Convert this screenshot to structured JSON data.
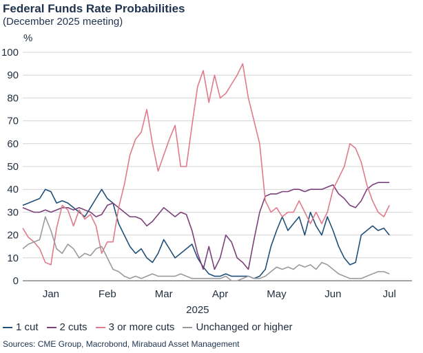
{
  "title": "Federal Funds Rate Probabilities",
  "subtitle": "(December 2025 meeting)",
  "source": "Sources: CME Group, Macrobond, Mirabaud Asset Management",
  "chart_data": {
    "type": "line",
    "ylabel": "%",
    "xlabel": "2025",
    "ylim": [
      0,
      100
    ],
    "yticks": [
      0,
      10,
      20,
      30,
      40,
      50,
      60,
      70,
      80,
      90,
      100
    ],
    "xlim": [
      0,
      6.9
    ],
    "month_ticks": [
      {
        "label": "Jan",
        "pos": 0.5
      },
      {
        "label": "Feb",
        "pos": 1.5
      },
      {
        "label": "Mar",
        "pos": 2.5
      },
      {
        "label": "Apr",
        "pos": 3.5
      },
      {
        "label": "May",
        "pos": 4.5
      },
      {
        "label": "Jun",
        "pos": 5.5
      },
      {
        "label": "Jul",
        "pos": 6.5
      }
    ],
    "x": [
      0.0,
      0.1,
      0.2,
      0.3,
      0.4,
      0.5,
      0.6,
      0.7,
      0.8,
      0.9,
      1.0,
      1.1,
      1.2,
      1.3,
      1.4,
      1.5,
      1.6,
      1.7,
      1.8,
      1.9,
      2.0,
      2.1,
      2.2,
      2.3,
      2.4,
      2.5,
      2.6,
      2.7,
      2.8,
      2.9,
      3.0,
      3.1,
      3.2,
      3.3,
      3.4,
      3.5,
      3.6,
      3.7,
      3.8,
      3.9,
      4.0,
      4.1,
      4.2,
      4.3,
      4.4,
      4.5,
      4.6,
      4.7,
      4.8,
      4.9,
      5.0,
      5.1,
      5.2,
      5.3,
      5.4,
      5.5,
      5.6,
      5.7,
      5.8,
      5.9,
      6.0,
      6.1,
      6.2,
      6.3,
      6.4,
      6.5
    ],
    "series": [
      {
        "name": "1 cut",
        "color": "#1f4e79",
        "values": [
          33,
          34,
          35,
          36,
          40,
          39,
          34,
          35,
          34,
          32,
          30,
          28,
          32,
          36,
          40,
          36,
          34,
          25,
          20,
          15,
          12,
          14,
          10,
          8,
          12,
          18,
          14,
          10,
          12,
          14,
          16,
          10,
          6,
          3,
          2,
          2,
          3,
          2,
          2,
          2,
          2,
          1,
          2,
          5,
          15,
          22,
          28,
          22,
          25,
          28,
          20,
          30,
          24,
          20,
          28,
          22,
          15,
          10,
          7,
          8,
          20,
          22,
          24,
          22,
          23,
          20
        ]
      },
      {
        "name": "2 cuts",
        "color": "#7b3f7a",
        "values": [
          32,
          31,
          30,
          30,
          31,
          30,
          31,
          32,
          32,
          31,
          32,
          31,
          30,
          28,
          29,
          33,
          34,
          32,
          30,
          28,
          28,
          27,
          24,
          26,
          29,
          32,
          30,
          28,
          30,
          29,
          22,
          12,
          5,
          15,
          5,
          10,
          20,
          17,
          10,
          8,
          5,
          18,
          30,
          37,
          38,
          38,
          39,
          39,
          40,
          40,
          39,
          40,
          40,
          40,
          41,
          42,
          38,
          36,
          33,
          32,
          35,
          40,
          42,
          43,
          43,
          43
        ]
      },
      {
        "name": "3 or more cuts",
        "color": "#e07a8a",
        "values": [
          23,
          19,
          17,
          14,
          8,
          7,
          23,
          33,
          31,
          24,
          31,
          27,
          29,
          24,
          12,
          17,
          17,
          32,
          42,
          55,
          62,
          65,
          75,
          60,
          48,
          55,
          62,
          68,
          50,
          50,
          68,
          85,
          92,
          78,
          90,
          80,
          82,
          86,
          90,
          95,
          80,
          70,
          60,
          35,
          30,
          32,
          28,
          30,
          30,
          35,
          30,
          25,
          30,
          25,
          30,
          40,
          45,
          50,
          60,
          58,
          52,
          42,
          35,
          30,
          28,
          33
        ]
      },
      {
        "name": "Unchanged or higher",
        "color": "#9a9a9a",
        "values": [
          14,
          16,
          17,
          18,
          28,
          22,
          14,
          12,
          16,
          14,
          10,
          12,
          11,
          14,
          15,
          10,
          5,
          4,
          2,
          1,
          2,
          1,
          2,
          3,
          2,
          2,
          2,
          2,
          3,
          2,
          1,
          1,
          1,
          1,
          1,
          1,
          2,
          0,
          0,
          1,
          2,
          1,
          1,
          2,
          4,
          6,
          5,
          6,
          5,
          7,
          6,
          7,
          5,
          8,
          7,
          5,
          3,
          2,
          1,
          1,
          1,
          2,
          3,
          4,
          4,
          3
        ]
      }
    ]
  }
}
